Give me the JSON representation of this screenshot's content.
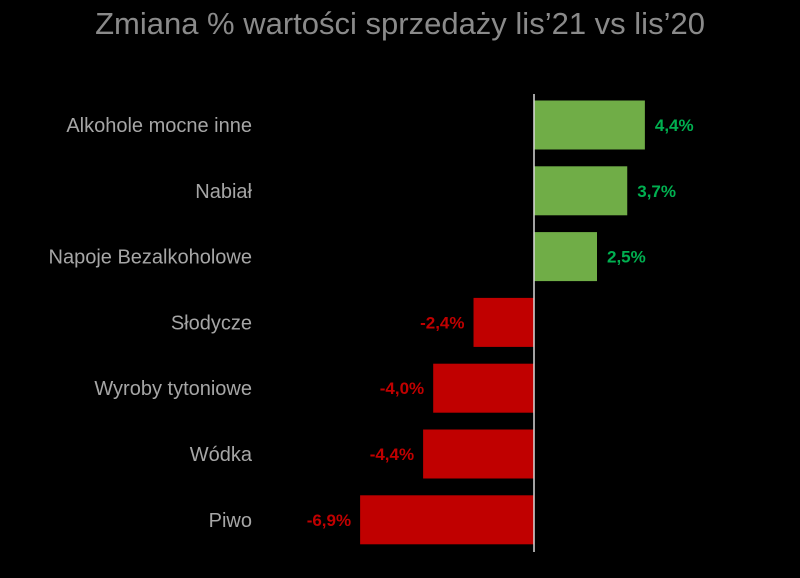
{
  "chart_data": {
    "type": "bar",
    "orientation": "horizontal",
    "title": "Zmiana % wartości sprzedaży lis’21 vs lis’20",
    "categories": [
      "Alkohole mocne inne",
      "Nabiał",
      "Napoje Bezalkoholowe",
      "Słodycze",
      "Wyroby tytoniowe",
      "Wódka",
      "Piwo"
    ],
    "values": [
      4.4,
      3.7,
      2.5,
      -2.4,
      -4.0,
      -4.4,
      -6.9
    ],
    "value_labels": [
      "4,4%",
      "3,7%",
      "2,5%",
      "-2,4%",
      "-4,0%",
      "-4,4%",
      "-6,9%"
    ],
    "grid": false,
    "legend": "none",
    "colors": {
      "positive_bar": "#70ad47",
      "negative_bar": "#c00000",
      "positive_label": "#00b050",
      "negative_label": "#c00000",
      "category_label": "#a6a6a6",
      "title": "#8a8a8a",
      "axis": "#d9d9d9",
      "background": "#000000"
    }
  }
}
